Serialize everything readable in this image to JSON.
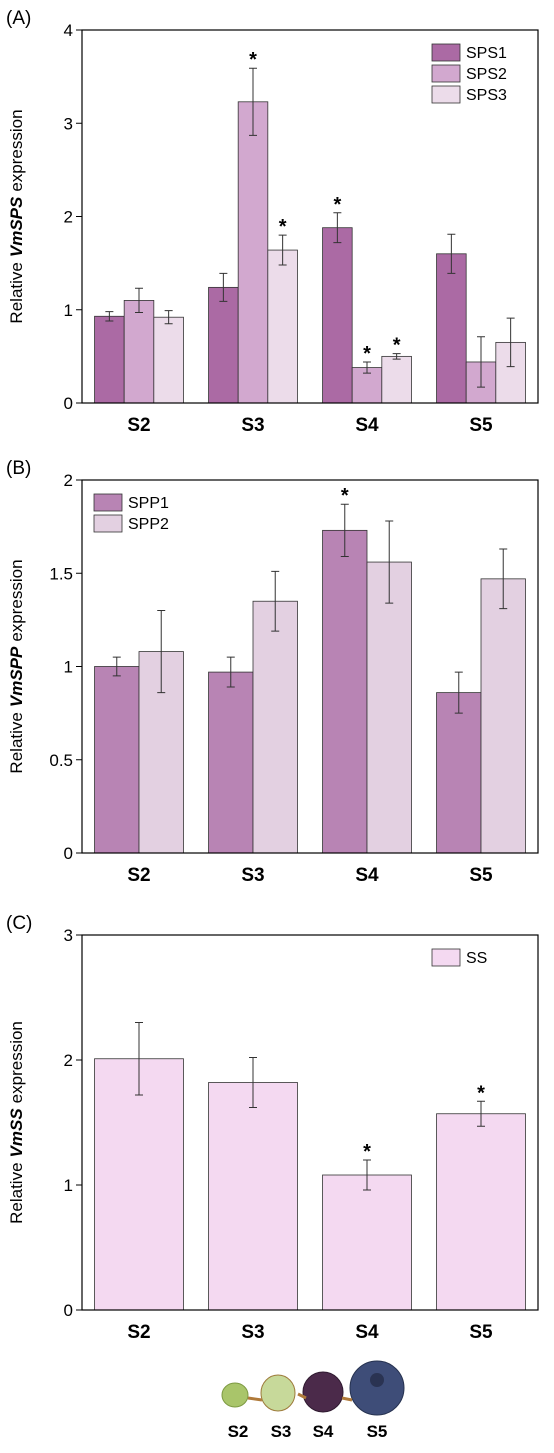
{
  "chart_data": [
    {
      "type": "bar",
      "title": "(A)",
      "ylabel": [
        "Relative",
        "VmSPS",
        "expression"
      ],
      "categories": [
        "S2",
        "S3",
        "S4",
        "S5"
      ],
      "series": [
        {
          "name": "SPS1",
          "color": "#ab6aa4",
          "values": [
            0.93,
            1.24,
            1.88,
            1.6
          ],
          "error": [
            0.05,
            0.15,
            0.16,
            0.21
          ],
          "annotations": [
            null,
            null,
            "*",
            null
          ]
        },
        {
          "name": "SPS2",
          "color": "#d2a8cf",
          "values": [
            1.1,
            3.23,
            0.38,
            0.44
          ],
          "error": [
            0.13,
            0.36,
            0.06,
            0.27
          ],
          "annotations": [
            null,
            "*",
            "*",
            null
          ]
        },
        {
          "name": "SPS3",
          "color": "#ecdcea",
          "values": [
            0.92,
            1.64,
            0.5,
            0.65
          ],
          "error": [
            0.07,
            0.16,
            0.03,
            0.26
          ],
          "annotations": [
            null,
            "*",
            "*",
            null
          ]
        }
      ],
      "ylim": [
        0,
        4
      ],
      "yticks": [
        0,
        1,
        2,
        3,
        4
      ],
      "legend": "upper-right"
    },
    {
      "type": "bar",
      "title": "(B)",
      "ylabel": [
        "Relative",
        "VmSPP",
        "expression"
      ],
      "categories": [
        "S2",
        "S3",
        "S4",
        "S5"
      ],
      "series": [
        {
          "name": "SPP1",
          "color": "#b884b4",
          "values": [
            1.0,
            0.97,
            1.73,
            0.86
          ],
          "error": [
            0.05,
            0.08,
            0.14,
            0.11
          ],
          "annotations": [
            null,
            null,
            "*",
            null
          ]
        },
        {
          "name": "SPP2",
          "color": "#e3d0e1",
          "values": [
            1.08,
            1.35,
            1.56,
            1.47
          ],
          "error": [
            0.22,
            0.16,
            0.22,
            0.16
          ],
          "annotations": [
            null,
            null,
            null,
            null
          ]
        }
      ],
      "ylim": [
        0,
        2
      ],
      "yticks": [
        0,
        0.5,
        1,
        1.5,
        2
      ],
      "legend": "upper-left"
    },
    {
      "type": "bar",
      "title": "(C)",
      "ylabel": [
        "Relative",
        "VmSS",
        "expression"
      ],
      "categories": [
        "S2",
        "S3",
        "S4",
        "S5"
      ],
      "series": [
        {
          "name": "SS",
          "color": "#f4d9f1",
          "values": [
            2.01,
            1.82,
            1.08,
            1.57
          ],
          "error": [
            0.29,
            0.2,
            0.12,
            0.1
          ],
          "annotations": [
            null,
            null,
            "*",
            "*"
          ]
        }
      ],
      "ylim": [
        0,
        3
      ],
      "yticks": [
        0,
        1,
        2,
        3
      ],
      "legend": "upper-right"
    }
  ],
  "illustration": {
    "labels": [
      "S2",
      "S3",
      "S4",
      "S5"
    ]
  }
}
